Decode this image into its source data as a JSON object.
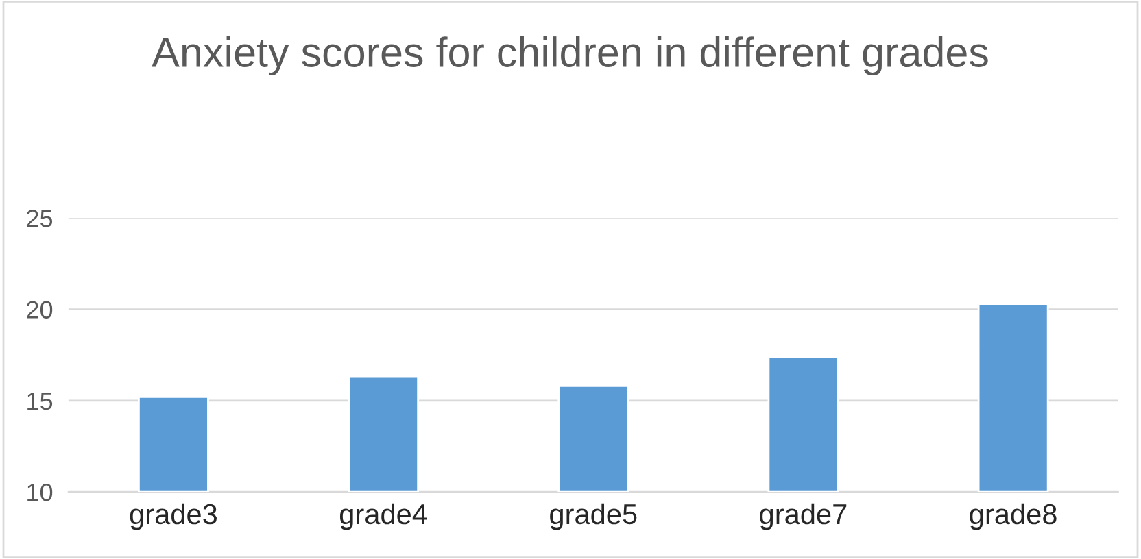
{
  "chart_data": {
    "type": "bar",
    "title": "Anxiety scores for children in different grades",
    "categories": [
      "grade3",
      "grade4",
      "grade5",
      "grade7",
      "grade8"
    ],
    "values": [
      15.2,
      16.3,
      15.8,
      17.4,
      20.3
    ],
    "color": "#5b9bd5",
    "ylim": [
      10,
      25
    ],
    "yticks": [
      10,
      15,
      20,
      25
    ],
    "grid": "y",
    "legend": false
  }
}
